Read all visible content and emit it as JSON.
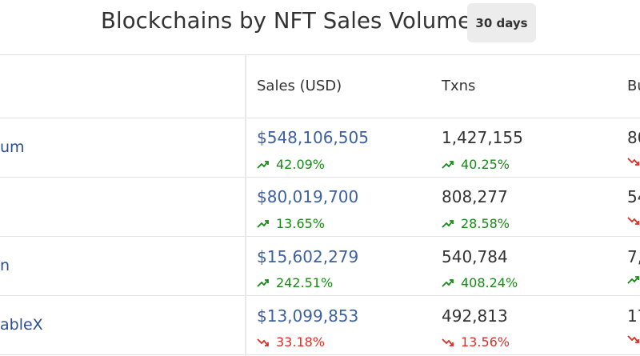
{
  "header": {
    "title": "Blockchains by NFT Sales Volume",
    "period": "30 days"
  },
  "columns": {
    "sales": "Sales (USD)",
    "txns": "Txns",
    "buyers": "Bu"
  },
  "rows": [
    {
      "chain": "um",
      "sales": "$548,106,505",
      "sales_change": "42.09%",
      "sales_trend": "up",
      "txns": "1,427,155",
      "txns_change": "40.25%",
      "txns_trend": "up",
      "buyers": "80",
      "buyers_trend": "down"
    },
    {
      "chain": "",
      "sales": "$80,019,700",
      "sales_change": "13.65%",
      "sales_trend": "up",
      "txns": "808,277",
      "txns_change": "28.58%",
      "txns_trend": "up",
      "buyers": "54",
      "buyers_trend": "down"
    },
    {
      "chain": "n",
      "sales": "$15,602,279",
      "sales_change": "242.51%",
      "sales_trend": "up",
      "txns": "540,784",
      "txns_change": "408.24%",
      "txns_trend": "up",
      "buyers": "7,",
      "buyers_trend": "up"
    },
    {
      "chain": "ableX",
      "sales": "$13,099,853",
      "sales_change": "33.18%",
      "sales_trend": "down",
      "txns": "492,813",
      "txns_change": "13.56%",
      "txns_trend": "down",
      "buyers": "17",
      "buyers_trend": "down"
    }
  ],
  "colors": {
    "up": "#1a8a1a",
    "down": "#d93025",
    "link": "#2c4d8f",
    "sales": "#3c61a1"
  }
}
